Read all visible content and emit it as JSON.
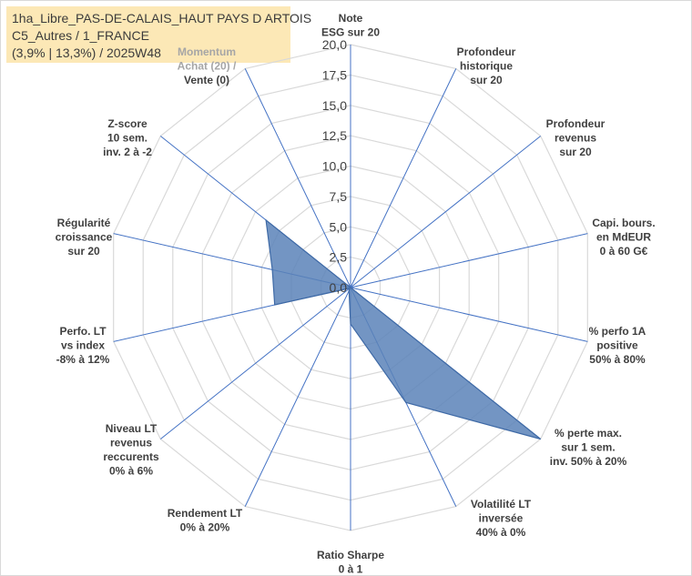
{
  "title_lines": [
    "1ha_Libre_PAS-DE-CALAIS_HAUT PAYS D ARTOIS",
    "C5_Autres / 1_FRANCE",
    "(3,9% | 13,3%) / 2025W48"
  ],
  "chart_data": {
    "type": "radar",
    "title": "",
    "rlim": [
      0,
      20
    ],
    "ticks": [
      "0,0",
      "2,5",
      "5,0",
      "7,5",
      "10,0",
      "12,5",
      "15,0",
      "17,5",
      "20,0"
    ],
    "tick_values": [
      0,
      2.5,
      5,
      7.5,
      10,
      12.5,
      15,
      17.5,
      20
    ],
    "grid": true,
    "colors": {
      "fill": "#5b82b8",
      "stroke": "#3f6aa6",
      "grid": "#d9d9d9",
      "spoke": "#4472c4"
    },
    "axes": [
      {
        "lines": [
          "Note",
          "ESG sur 20"
        ],
        "value": 0
      },
      {
        "lines": [
          "Profondeur",
          "historique",
          "sur 20"
        ],
        "value": 0
      },
      {
        "lines": [
          "Profondeur",
          "revenus",
          "sur 20"
        ],
        "value": 0
      },
      {
        "lines": [
          "Capi. bours.",
          "en MdEUR",
          "0 à 60 G€"
        ],
        "value": 0
      },
      {
        "lines": [
          "% perfo 1A",
          "positive",
          "50% à 80%"
        ],
        "value": 0
      },
      {
        "lines": [
          "% perte max.",
          "sur 1 sem.",
          "inv. 50% à 20%"
        ],
        "value": 20
      },
      {
        "lines": [
          "Volatilité LT",
          "inversée",
          "40% à 0%"
        ],
        "value": 10.5
      },
      {
        "lines": [
          "Ratio Sharpe",
          "0 à 1"
        ],
        "value": 3
      },
      {
        "lines": [
          "Rendement LT",
          "0% à 20%"
        ],
        "value": 0.3
      },
      {
        "lines": [
          "Niveau LT",
          "revenus",
          "reccurents",
          "0% à 6%"
        ],
        "value": 0.1
      },
      {
        "lines": [
          "Perfo. LT",
          "vs index",
          "-8% à 12%"
        ],
        "value": 6.4
      },
      {
        "lines": [
          "Régularité",
          "croissance",
          "sur 20"
        ],
        "value": 6.6
      },
      {
        "lines": [
          "Z-score",
          "10 sem.",
          "inv. 2 à -2"
        ],
        "value": 8.9
      },
      {
        "lines": [
          "Momentum",
          "Achat (20) /",
          "Vente (0)"
        ],
        "value": 0
      }
    ]
  }
}
